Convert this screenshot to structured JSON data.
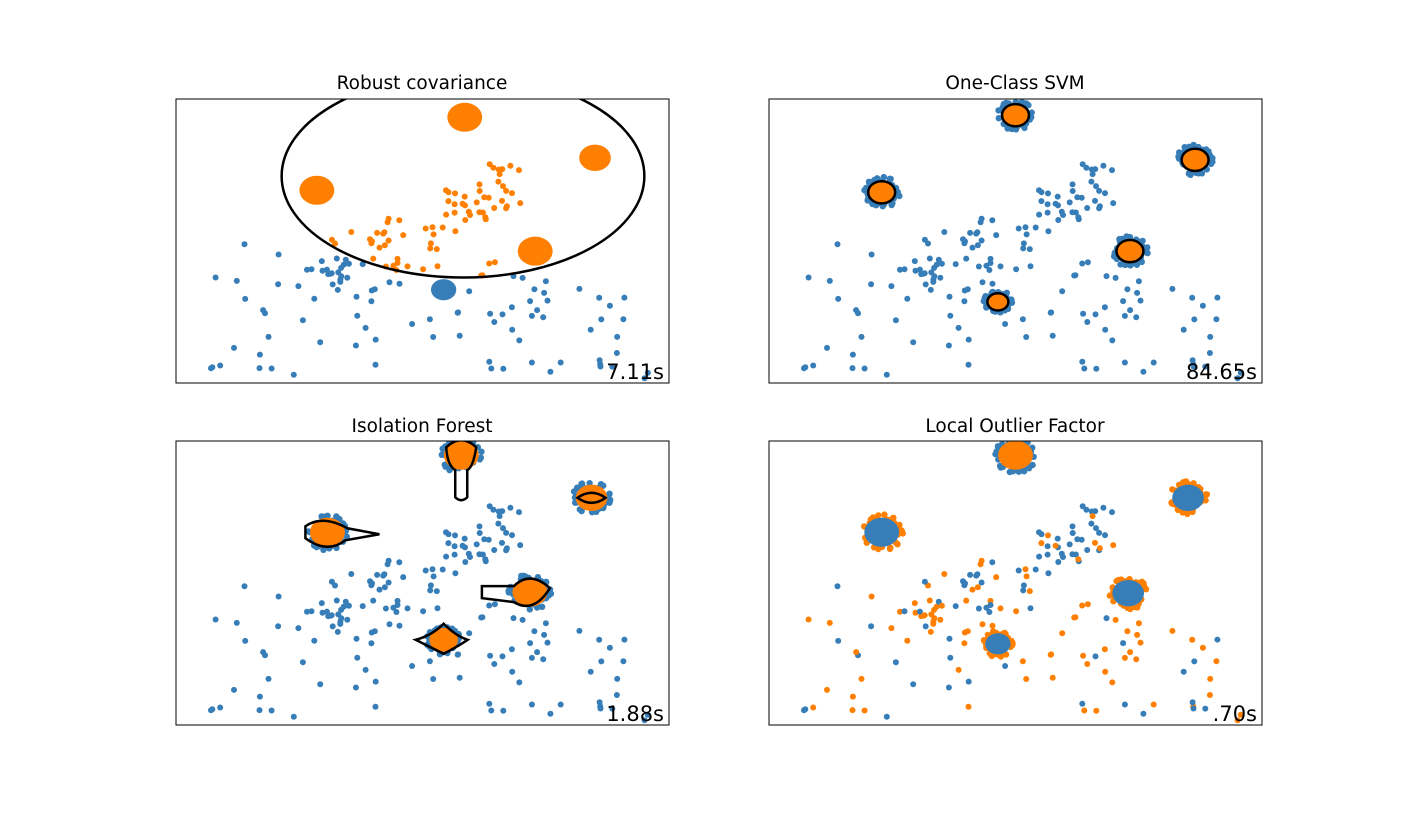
{
  "figure": {
    "background": "#ffffff",
    "inlier_color": "#377eb8",
    "outlier_color": "#ff7f00",
    "contour_color": "#000000"
  },
  "chart_data": [
    {
      "type": "scatter",
      "title": "Robust covariance",
      "time_label": "7.11s",
      "xlim": [
        -7,
        7
      ],
      "ylim": [
        -7,
        7
      ],
      "grid": false,
      "decision_boundary": {
        "shape": "ellipse",
        "center": [
          1.15,
          3.2
        ],
        "radii": [
          5.15,
          5.0
        ]
      },
      "clusters": [
        {
          "center": [
            1.2,
            6.1
          ],
          "radius": 0.55
        },
        {
          "center": [
            4.9,
            4.1
          ],
          "radius": 0.5
        },
        {
          "center": [
            -3.0,
            2.5
          ],
          "radius": 0.55
        },
        {
          "center": [
            3.2,
            -0.5
          ],
          "radius": 0.55
        },
        {
          "center": [
            0.6,
            -2.4
          ],
          "radius": 0.4
        }
      ]
    },
    {
      "type": "scatter",
      "title": "One-Class SVM",
      "time_label": "84.65s",
      "xlim": [
        -7,
        7
      ],
      "ylim": [
        -7,
        7
      ],
      "grid": false,
      "decision_boundary": {
        "shape": "closed-contours-around-clusters"
      },
      "clusters": [
        {
          "center": [
            0.0,
            6.2
          ],
          "radius": 0.45
        },
        {
          "center": [
            5.1,
            4.0
          ],
          "radius": 0.45
        },
        {
          "center": [
            -3.8,
            2.4
          ],
          "radius": 0.45
        },
        {
          "center": [
            3.25,
            -0.5
          ],
          "radius": 0.45
        },
        {
          "center": [
            -0.5,
            -3.0
          ],
          "radius": 0.35
        }
      ]
    },
    {
      "type": "scatter",
      "title": "Isolation Forest",
      "time_label": "1.88s",
      "xlim": [
        -7,
        7
      ],
      "ylim": [
        -7,
        7
      ],
      "grid": false,
      "decision_boundary": {
        "shape": "irregular-contours-around-clusters"
      },
      "clusters": [
        {
          "center": [
            1.1,
            6.3
          ],
          "radius": 0.55
        },
        {
          "center": [
            4.8,
            4.2
          ],
          "radius": 0.5
        },
        {
          "center": [
            -2.7,
            2.5
          ],
          "radius": 0.55
        },
        {
          "center": [
            3.05,
            -0.45
          ],
          "radius": 0.55
        },
        {
          "center": [
            0.6,
            -2.8
          ],
          "radius": 0.45
        }
      ]
    },
    {
      "type": "scatter",
      "title": "Local Outlier Factor",
      "time_label": ".70s",
      "xlim": [
        -7,
        7
      ],
      "ylim": [
        -7,
        7
      ],
      "grid": false,
      "decision_boundary": null,
      "clusters": [
        {
          "center": [
            0.0,
            6.3
          ],
          "radius": 0.55
        },
        {
          "center": [
            4.9,
            4.2
          ],
          "radius": 0.5
        },
        {
          "center": [
            -3.8,
            2.5
          ],
          "radius": 0.55
        },
        {
          "center": [
            3.2,
            -0.5
          ],
          "radius": 0.5
        },
        {
          "center": [
            -0.5,
            -3.0
          ],
          "radius": 0.4
        }
      ]
    }
  ]
}
